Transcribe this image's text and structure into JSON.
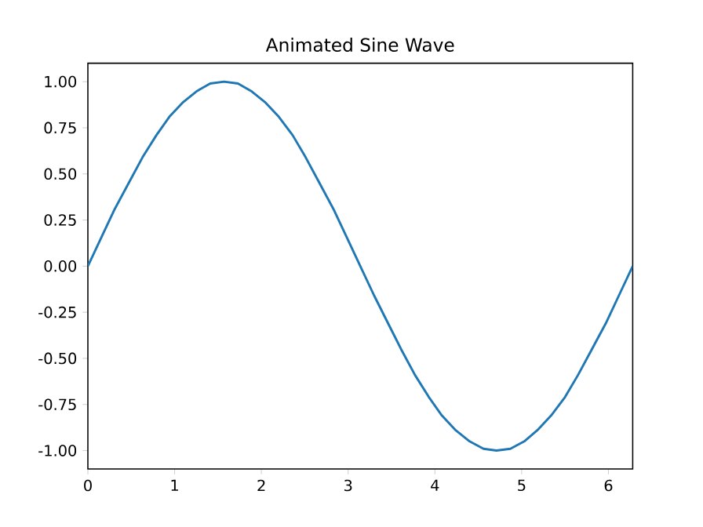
{
  "chart_data": {
    "type": "line",
    "title": "Animated Sine Wave",
    "x": [
      0,
      0.16,
      0.31,
      0.47,
      0.63,
      0.79,
      0.94,
      1.1,
      1.26,
      1.41,
      1.57,
      1.73,
      1.88,
      2.04,
      2.2,
      2.36,
      2.51,
      2.67,
      2.83,
      2.98,
      3.14,
      3.3,
      3.46,
      3.61,
      3.77,
      3.93,
      4.08,
      4.24,
      4.4,
      4.56,
      4.71,
      4.87,
      5.03,
      5.18,
      5.34,
      5.5,
      5.65,
      5.81,
      5.97,
      6.12,
      6.28
    ],
    "values": [
      0,
      0.16,
      0.31,
      0.45,
      0.59,
      0.71,
      0.81,
      0.89,
      0.95,
      0.99,
      1.0,
      0.99,
      0.95,
      0.89,
      0.81,
      0.71,
      0.59,
      0.45,
      0.31,
      0.16,
      0,
      -0.16,
      -0.31,
      -0.45,
      -0.59,
      -0.71,
      -0.81,
      -0.89,
      -0.95,
      -0.99,
      -1.0,
      -0.99,
      -0.95,
      -0.89,
      -0.81,
      -0.71,
      -0.59,
      -0.45,
      -0.31,
      -0.16,
      0
    ],
    "color": "#1f77b4",
    "xlim": [
      0,
      6.28
    ],
    "ylim": [
      -1.1,
      1.1
    ],
    "xticks": [
      0,
      1,
      2,
      3,
      4,
      5,
      6
    ],
    "yticks": [
      {
        "value": -1,
        "label": "-1.00"
      },
      {
        "value": -0.75,
        "label": "-0.75"
      },
      {
        "value": -0.5,
        "label": "-0.50"
      },
      {
        "value": -0.25,
        "label": "-0.25"
      },
      {
        "value": 0,
        "label": "0.00"
      },
      {
        "value": 0.25,
        "label": "0.25"
      },
      {
        "value": 0.5,
        "label": "0.50"
      },
      {
        "value": 0.75,
        "label": "0.75"
      },
      {
        "value": 1,
        "label": "1.00"
      }
    ]
  }
}
